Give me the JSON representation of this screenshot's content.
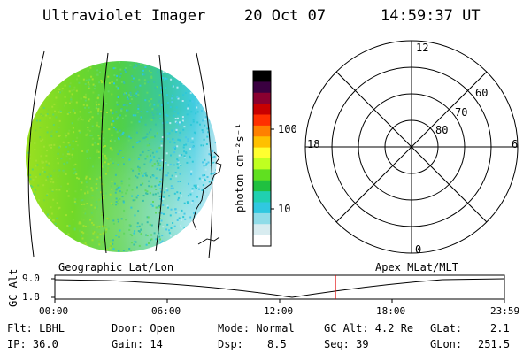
{
  "header": {
    "instrument": "Ultraviolet Imager",
    "date": "20 Oct 07",
    "time": "14:59:37 UT"
  },
  "colorbar": {
    "ticks": [
      "100",
      "10"
    ],
    "unit_label": "photon cm⁻²s⁻¹",
    "colors": [
      "#000000",
      "#3a0040",
      "#8a0030",
      "#c80000",
      "#ff3000",
      "#ff8000",
      "#ffc000",
      "#ffff30",
      "#c0ff20",
      "#60e020",
      "#20c040",
      "#20d0b0",
      "#30c8e0",
      "#90dce8",
      "#d8ecf0",
      "#ffffff"
    ]
  },
  "polar": {
    "labels": {
      "top": "12",
      "bottom": "0",
      "left": "18",
      "right": "6",
      "r60": "60",
      "r70": "70",
      "r80": "80"
    }
  },
  "timeline": {
    "left_title": "Geographic Lat/Lon",
    "right_title": "Apex MLat/MLT",
    "axis_label": "GC Alt",
    "y_ticks": [
      "9.0",
      "1.8"
    ],
    "x_ticks": [
      "00:00",
      "06:00",
      "12:00",
      "18:00",
      "23:59"
    ],
    "marker_color": "#e00000"
  },
  "info": {
    "flt": "Flt: LBHL",
    "ip": "IP: 36.0",
    "door": "Door: Open",
    "gain": "Gain: 14",
    "mode": "Mode: Normal",
    "dsp_label": "Dsp:",
    "dsp_value": "8.5",
    "gc_alt": "GC Alt: 4.2 Re",
    "seq": "Seq: 39",
    "glat_label": "GLat:",
    "glat_value": "2.1",
    "glon_label": "GLon:",
    "glon_value": "251.5"
  }
}
